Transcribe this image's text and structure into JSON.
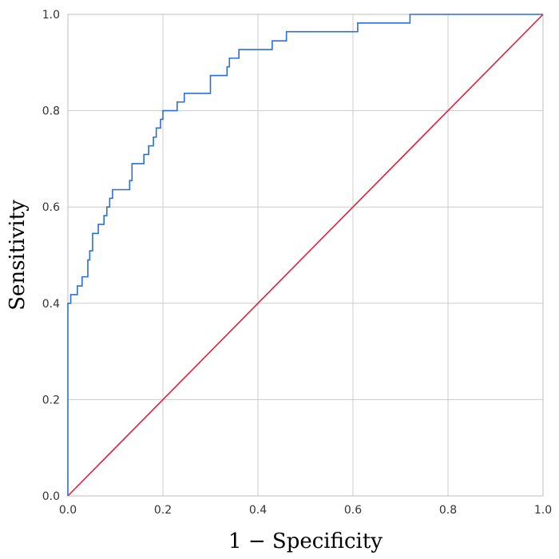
{
  "chart_data": {
    "type": "line",
    "title": "",
    "xlabel": "1 − Specificity",
    "ylabel": "Sensitivity",
    "xlim": [
      0,
      1
    ],
    "ylim": [
      0,
      1
    ],
    "x_ticks": [
      "0.0",
      "0.2",
      "0.4",
      "0.6",
      "0.8",
      "1.0"
    ],
    "y_ticks": [
      "0.0",
      "0.2",
      "0.4",
      "0.6",
      "0.8",
      "1.0"
    ],
    "grid": true,
    "legend": "none",
    "series": [
      {
        "color": "#2b6fd6",
        "style": "step",
        "x": [
          0.0,
          0.0,
          0.006,
          0.006,
          0.02,
          0.02,
          0.03,
          0.03,
          0.042,
          0.042,
          0.046,
          0.046,
          0.052,
          0.052,
          0.064,
          0.064,
          0.076,
          0.076,
          0.082,
          0.082,
          0.088,
          0.088,
          0.094,
          0.094,
          0.13,
          0.13,
          0.135,
          0.135,
          0.16,
          0.16,
          0.17,
          0.17,
          0.18,
          0.18,
          0.186,
          0.186,
          0.195,
          0.195,
          0.2,
          0.2,
          0.23,
          0.23,
          0.245,
          0.245,
          0.3,
          0.3,
          0.335,
          0.335,
          0.34,
          0.34,
          0.36,
          0.36,
          0.43,
          0.43,
          0.46,
          0.46,
          0.61,
          0.61,
          0.72,
          0.72,
          1.0
        ],
        "y": [
          0.0,
          0.4,
          0.4,
          0.418,
          0.418,
          0.436,
          0.436,
          0.455,
          0.455,
          0.49,
          0.49,
          0.509,
          0.509,
          0.545,
          0.545,
          0.564,
          0.564,
          0.582,
          0.582,
          0.6,
          0.6,
          0.618,
          0.618,
          0.636,
          0.636,
          0.655,
          0.655,
          0.69,
          0.69,
          0.709,
          0.709,
          0.727,
          0.727,
          0.745,
          0.745,
          0.764,
          0.764,
          0.782,
          0.782,
          0.8,
          0.8,
          0.818,
          0.818,
          0.836,
          0.836,
          0.873,
          0.873,
          0.891,
          0.891,
          0.909,
          0.909,
          0.927,
          0.927,
          0.945,
          0.945,
          0.964,
          0.964,
          0.982,
          0.982,
          1.0,
          1.0
        ]
      },
      {
        "color": "#e0203a",
        "style": "line",
        "x": [
          0.0,
          1.0
        ],
        "y": [
          0.0,
          1.0
        ]
      }
    ]
  }
}
